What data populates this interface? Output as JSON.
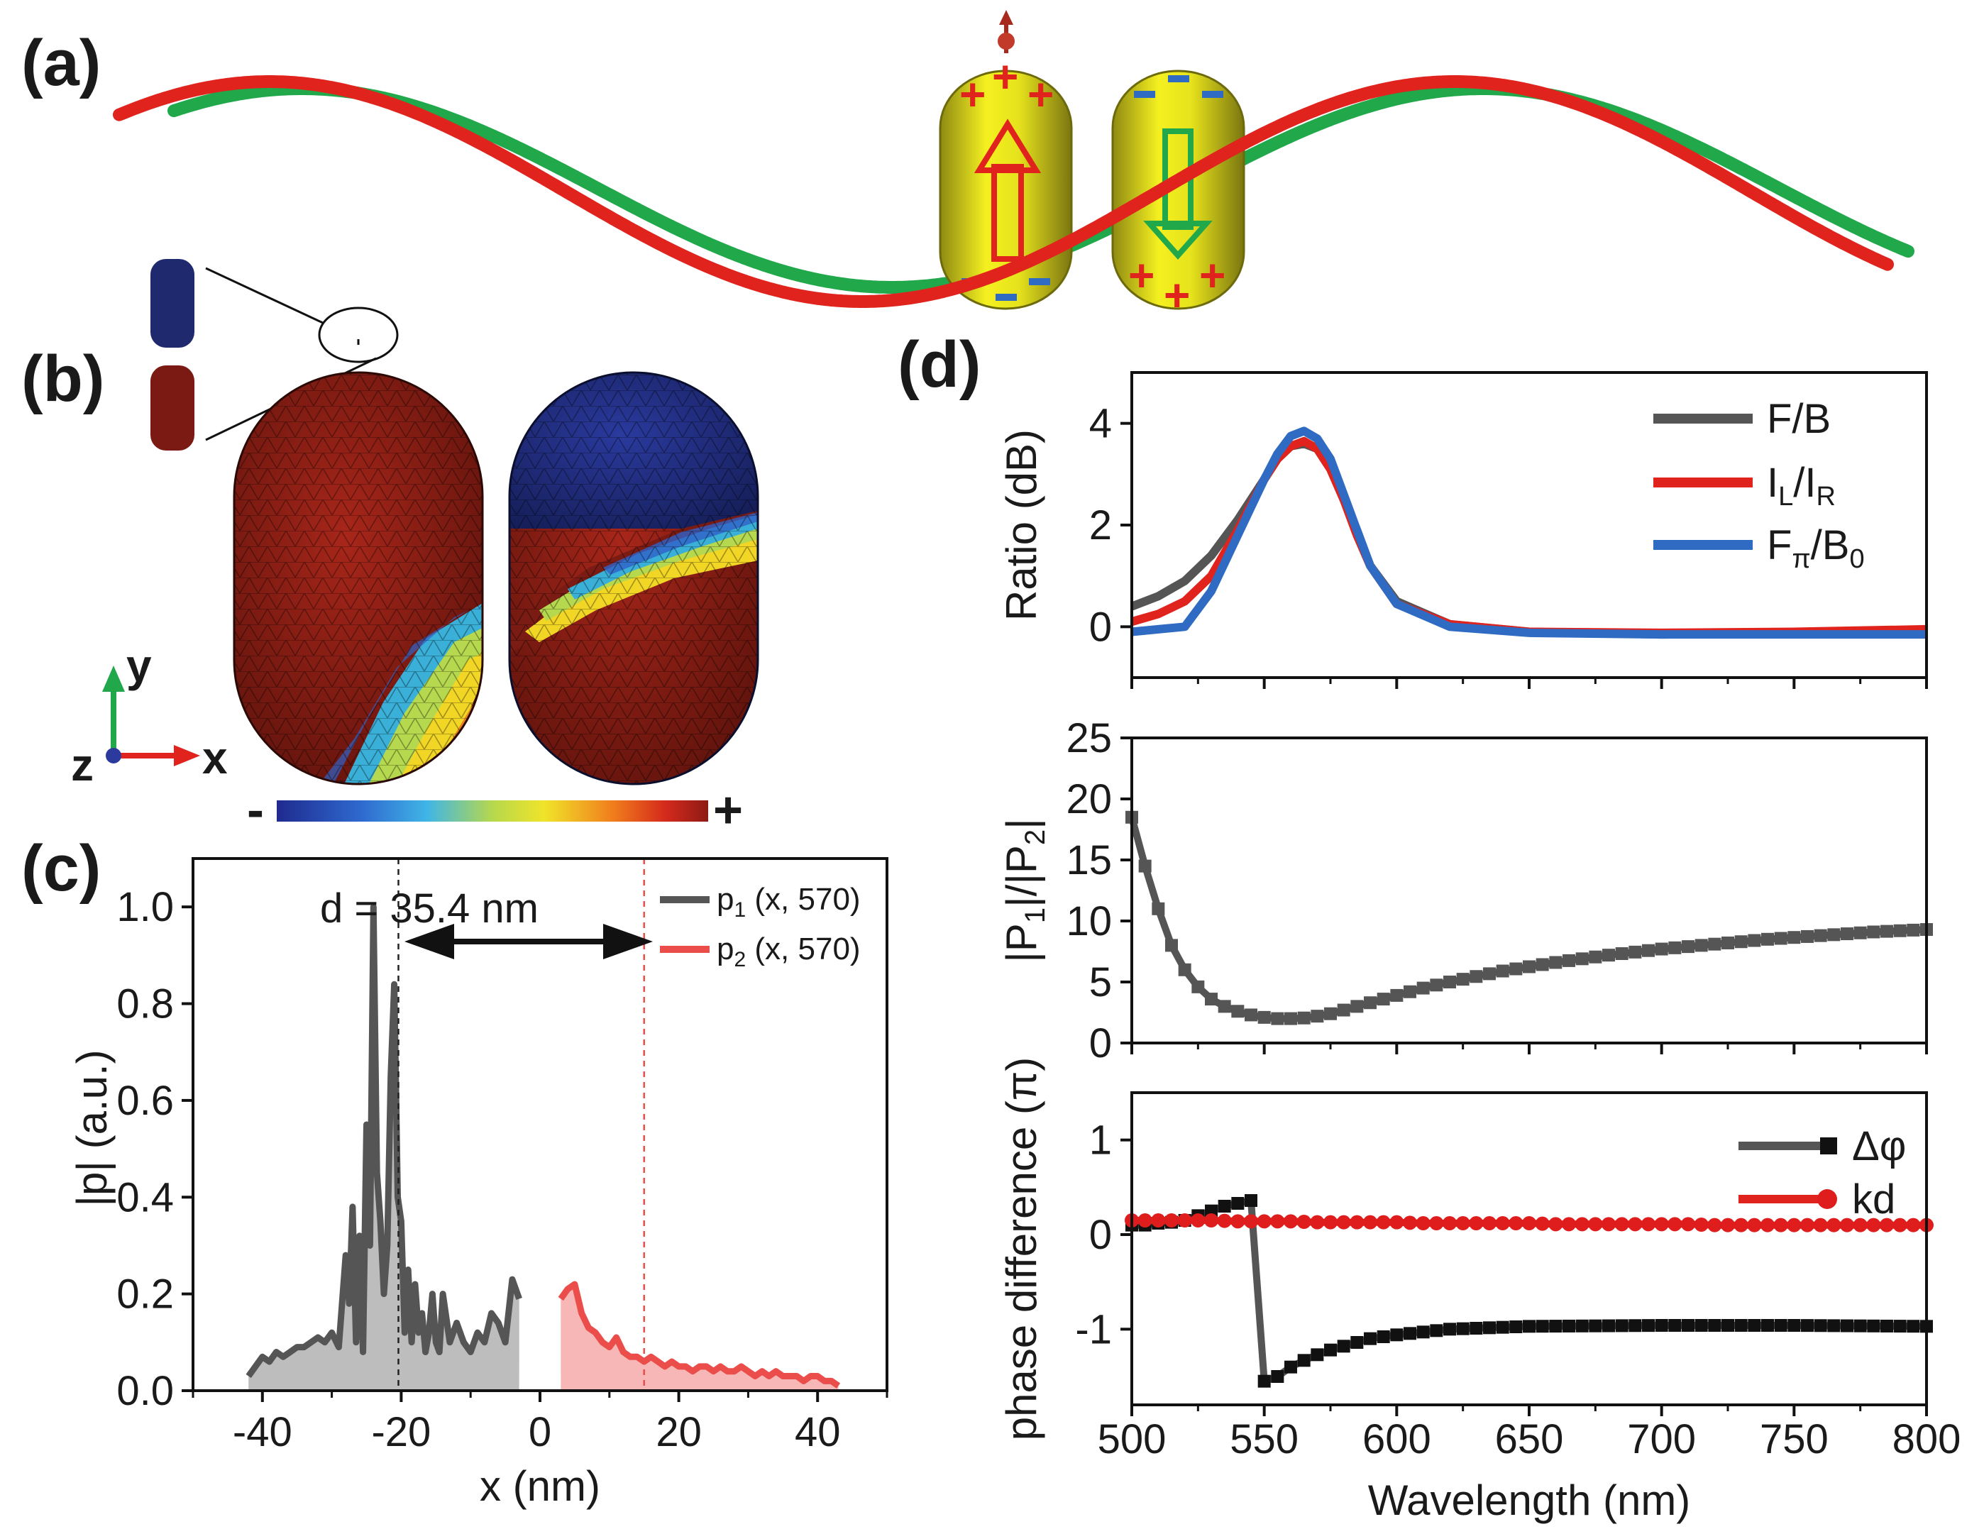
{
  "figure": {
    "panel_labels": [
      "(a)",
      "(b)",
      "(c)",
      "(d)"
    ],
    "colors": {
      "red": "#e0231d",
      "green": "#21a84a",
      "gold": "#d9d421",
      "gray": "#555555",
      "blue": "#2f6bc2",
      "black": "#111111",
      "light_red": "#ea4d4a",
      "kd_red": "#e01d1d"
    },
    "panel_a": {
      "description_icons": [
        "red-sine-wave",
        "green-sine-wave",
        "gold-nanorod-dipole-up",
        "gold-nanorod-dipole-down"
      ],
      "signs": {
        "plus": "+",
        "minus": "−"
      }
    },
    "panel_b": {
      "axes": {
        "y": "y",
        "x": "x",
        "z": "z"
      },
      "colorbar": {
        "min_label": "-",
        "max_label": "+"
      }
    }
  },
  "chart_data": [
    {
      "id": "c",
      "type": "area",
      "xlabel": "x (nm)",
      "ylabel": "|p| (a.u.)",
      "xlim": [
        -50,
        50
      ],
      "ylim": [
        0,
        1.1
      ],
      "xticks": [
        -40,
        -20,
        0,
        20,
        40
      ],
      "yticks": [
        0.0,
        0.2,
        0.4,
        0.6,
        0.8,
        1.0
      ],
      "ytick_labels": [
        "0.0",
        "0.2",
        "0.4",
        "0.6",
        "0.8",
        "1.0"
      ],
      "annotation": "d = 35.4 nm",
      "vlines": [
        -20.4,
        15.0
      ],
      "series": [
        {
          "name": "p1 (x, 570)",
          "name_main": "p",
          "name_sub": "1",
          "name_rest": " (x, 570)",
          "color": "#555555",
          "x": [
            -42,
            -41,
            -40,
            -39,
            -38,
            -37,
            -36,
            -35,
            -34,
            -33,
            -32,
            -31,
            -30,
            -29,
            -28,
            -27.5,
            -27,
            -26.5,
            -26,
            -25.5,
            -25,
            -24.5,
            -24,
            -23.5,
            -23,
            -22.5,
            -22,
            -21.5,
            -21,
            -20.5,
            -20,
            -19.5,
            -19,
            -18.5,
            -18,
            -17.5,
            -17,
            -16.5,
            -16,
            -15.5,
            -15,
            -14.5,
            -14,
            -13,
            -12,
            -11,
            -10,
            -9,
            -8,
            -7,
            -6,
            -5,
            -4,
            -3
          ],
          "y": [
            0.03,
            0.05,
            0.07,
            0.06,
            0.08,
            0.07,
            0.08,
            0.09,
            0.09,
            0.1,
            0.11,
            0.1,
            0.12,
            0.09,
            0.28,
            0.18,
            0.38,
            0.1,
            0.32,
            0.08,
            0.55,
            0.3,
            1.0,
            0.45,
            0.35,
            0.2,
            0.3,
            0.65,
            0.84,
            0.4,
            0.35,
            0.12,
            0.25,
            0.1,
            0.22,
            0.12,
            0.16,
            0.08,
            0.12,
            0.2,
            0.1,
            0.08,
            0.2,
            0.1,
            0.14,
            0.1,
            0.08,
            0.12,
            0.1,
            0.16,
            0.14,
            0.1,
            0.23,
            0.19
          ]
        },
        {
          "name": "p2 (x, 570)",
          "name_main": "p",
          "name_sub": "2",
          "name_rest": " (x, 570)",
          "color": "#ea4d4a",
          "x": [
            3,
            4,
            5,
            6,
            7,
            8,
            9,
            10,
            11,
            12,
            13,
            14,
            15,
            16,
            17,
            18,
            19,
            20,
            21,
            22,
            23,
            24,
            25,
            26,
            27,
            28,
            29,
            30,
            31,
            32,
            33,
            34,
            35,
            36,
            37,
            38,
            39,
            40,
            41,
            42,
            43
          ],
          "y": [
            0.19,
            0.21,
            0.22,
            0.16,
            0.13,
            0.12,
            0.1,
            0.09,
            0.11,
            0.08,
            0.07,
            0.07,
            0.06,
            0.07,
            0.06,
            0.05,
            0.06,
            0.05,
            0.05,
            0.04,
            0.05,
            0.05,
            0.04,
            0.05,
            0.04,
            0.04,
            0.05,
            0.04,
            0.03,
            0.04,
            0.03,
            0.04,
            0.03,
            0.03,
            0.03,
            0.02,
            0.03,
            0.03,
            0.02,
            0.02,
            0.01
          ]
        }
      ]
    },
    {
      "id": "d1",
      "type": "line",
      "xlabel": "",
      "ylabel": "Ratio (dB)",
      "xlim": [
        500,
        800
      ],
      "ylim": [
        -1,
        5
      ],
      "yticks": [
        0,
        2,
        4
      ],
      "series": [
        {
          "name": "F/B",
          "name_main": "F/B",
          "color": "#555555",
          "x": [
            500,
            510,
            520,
            530,
            540,
            550,
            555,
            560,
            565,
            570,
            575,
            580,
            585,
            590,
            600,
            620,
            650,
            700,
            750,
            800
          ],
          "y": [
            0.4,
            0.6,
            0.9,
            1.4,
            2.1,
            2.9,
            3.3,
            3.55,
            3.6,
            3.5,
            3.1,
            2.5,
            1.9,
            1.2,
            0.5,
            0.05,
            -0.1,
            -0.15,
            -0.12,
            -0.1
          ]
        },
        {
          "name": "IL/IR",
          "name_main": "I",
          "name_sub": "L",
          "name_mid": "/I",
          "name_sub2": "R",
          "color": "#e0231d",
          "x": [
            500,
            510,
            520,
            530,
            540,
            550,
            555,
            560,
            565,
            570,
            575,
            580,
            585,
            590,
            600,
            620,
            650,
            700,
            750,
            800
          ],
          "y": [
            0.1,
            0.25,
            0.5,
            1.0,
            1.9,
            2.9,
            3.3,
            3.55,
            3.65,
            3.5,
            3.1,
            2.5,
            1.8,
            1.2,
            0.45,
            0.05,
            -0.1,
            -0.12,
            -0.1,
            -0.05
          ]
        },
        {
          "name": "Fπ/B0",
          "name_main": "F",
          "name_sub": "π",
          "name_mid": "/B",
          "name_sub2": "0",
          "color": "#2f6bc2",
          "x": [
            500,
            510,
            520,
            530,
            540,
            550,
            555,
            560,
            565,
            570,
            575,
            580,
            585,
            590,
            600,
            620,
            650,
            700,
            750,
            800
          ],
          "y": [
            -0.1,
            -0.05,
            0.0,
            0.7,
            1.8,
            2.9,
            3.4,
            3.75,
            3.85,
            3.7,
            3.3,
            2.6,
            1.9,
            1.2,
            0.45,
            0.0,
            -0.12,
            -0.15,
            -0.15,
            -0.15
          ]
        }
      ]
    },
    {
      "id": "d2",
      "type": "line",
      "ylabel_parts": [
        "|P",
        "1",
        "|/|P",
        "2",
        "|"
      ],
      "ylabel": "|P1|/|P2|",
      "xlim": [
        500,
        800
      ],
      "ylim": [
        0,
        25
      ],
      "yticks": [
        0,
        5,
        10,
        15,
        20,
        25
      ],
      "series": [
        {
          "name": "|P1|/|P2|",
          "color": "#555555",
          "marker": "square",
          "x": [
            500,
            505,
            510,
            515,
            520,
            525,
            530,
            535,
            540,
            545,
            550,
            555,
            560,
            565,
            570,
            575,
            580,
            590,
            600,
            610,
            620,
            640,
            660,
            680,
            700,
            720,
            740,
            760,
            780,
            800
          ],
          "y": [
            18.5,
            14.5,
            11.0,
            8.0,
            6.0,
            4.6,
            3.6,
            3.0,
            2.6,
            2.3,
            2.1,
            2.0,
            2.0,
            2.05,
            2.2,
            2.4,
            2.7,
            3.3,
            3.9,
            4.5,
            5.0,
            5.9,
            6.6,
            7.2,
            7.7,
            8.1,
            8.5,
            8.8,
            9.1,
            9.3
          ]
        }
      ]
    },
    {
      "id": "d3",
      "type": "line",
      "xlabel": "Wavelength (nm)",
      "ylabel": "phase difference (π)",
      "xlim": [
        500,
        800
      ],
      "ylim": [
        -1.8,
        1.5
      ],
      "yticks": [
        -1,
        0,
        1
      ],
      "xticks": [
        500,
        550,
        600,
        650,
        700,
        750,
        800
      ],
      "series": [
        {
          "name": "Δφ",
          "color": "#111111",
          "marker": "square",
          "x": [
            500,
            505,
            510,
            515,
            520,
            525,
            530,
            535,
            540,
            545,
            550,
            555,
            560,
            565,
            570,
            575,
            580,
            590,
            600,
            620,
            650,
            700,
            750,
            800
          ],
          "y": [
            0.1,
            0.1,
            0.12,
            0.13,
            0.15,
            0.2,
            0.25,
            0.3,
            0.33,
            0.36,
            -1.55,
            -1.5,
            -1.4,
            -1.33,
            -1.27,
            -1.22,
            -1.18,
            -1.1,
            -1.06,
            -1.0,
            -0.97,
            -0.96,
            -0.96,
            -0.97
          ]
        },
        {
          "name": "kd",
          "color": "#e01d1d",
          "marker": "circle",
          "x": [
            500,
            510,
            520,
            530,
            540,
            550,
            560,
            570,
            580,
            590,
            600,
            610,
            620,
            630,
            640,
            650,
            660,
            670,
            680,
            690,
            700,
            710,
            720,
            730,
            740,
            750,
            760,
            770,
            780,
            790,
            800
          ],
          "y": [
            0.15,
            0.15,
            0.15,
            0.15,
            0.14,
            0.14,
            0.14,
            0.13,
            0.13,
            0.13,
            0.13,
            0.12,
            0.12,
            0.12,
            0.12,
            0.12,
            0.11,
            0.11,
            0.11,
            0.11,
            0.11,
            0.11,
            0.1,
            0.1,
            0.1,
            0.1,
            0.1,
            0.1,
            0.1,
            0.1,
            0.1
          ]
        }
      ]
    }
  ]
}
